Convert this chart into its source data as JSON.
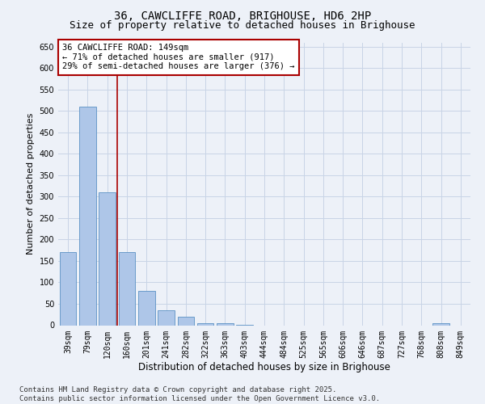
{
  "title_line1": "36, CAWCLIFFE ROAD, BRIGHOUSE, HD6 2HP",
  "title_line2": "Size of property relative to detached houses in Brighouse",
  "xlabel": "Distribution of detached houses by size in Brighouse",
  "ylabel": "Number of detached properties",
  "bar_labels": [
    "39sqm",
    "79sqm",
    "120sqm",
    "160sqm",
    "201sqm",
    "241sqm",
    "282sqm",
    "322sqm",
    "363sqm",
    "403sqm",
    "444sqm",
    "484sqm",
    "525sqm",
    "565sqm",
    "606sqm",
    "646sqm",
    "687sqm",
    "727sqm",
    "768sqm",
    "808sqm",
    "849sqm"
  ],
  "bar_values": [
    170,
    510,
    310,
    170,
    80,
    35,
    20,
    5,
    5,
    1,
    0,
    0,
    0,
    0,
    0,
    0,
    0,
    0,
    0,
    5,
    0
  ],
  "bar_color": "#aec6e8",
  "bar_edge_color": "#5b92c4",
  "vline_color": "#aa0000",
  "vline_x_idx": 2.5,
  "annotation_text": "36 CAWCLIFFE ROAD: 149sqm\n← 71% of detached houses are smaller (917)\n29% of semi-detached houses are larger (376) →",
  "annotation_box_facecolor": "#ffffff",
  "annotation_box_edgecolor": "#aa0000",
  "ylim": [
    0,
    660
  ],
  "yticks": [
    0,
    50,
    100,
    150,
    200,
    250,
    300,
    350,
    400,
    450,
    500,
    550,
    600,
    650
  ],
  "grid_color": "#c8d4e6",
  "background_color": "#edf1f8",
  "footer_line1": "Contains HM Land Registry data © Crown copyright and database right 2025.",
  "footer_line2": "Contains public sector information licensed under the Open Government Licence v3.0.",
  "title_fontsize": 10,
  "subtitle_fontsize": 9,
  "xlabel_fontsize": 8.5,
  "ylabel_fontsize": 8,
  "tick_fontsize": 7,
  "ann_fontsize": 7.5,
  "footer_fontsize": 6.5
}
